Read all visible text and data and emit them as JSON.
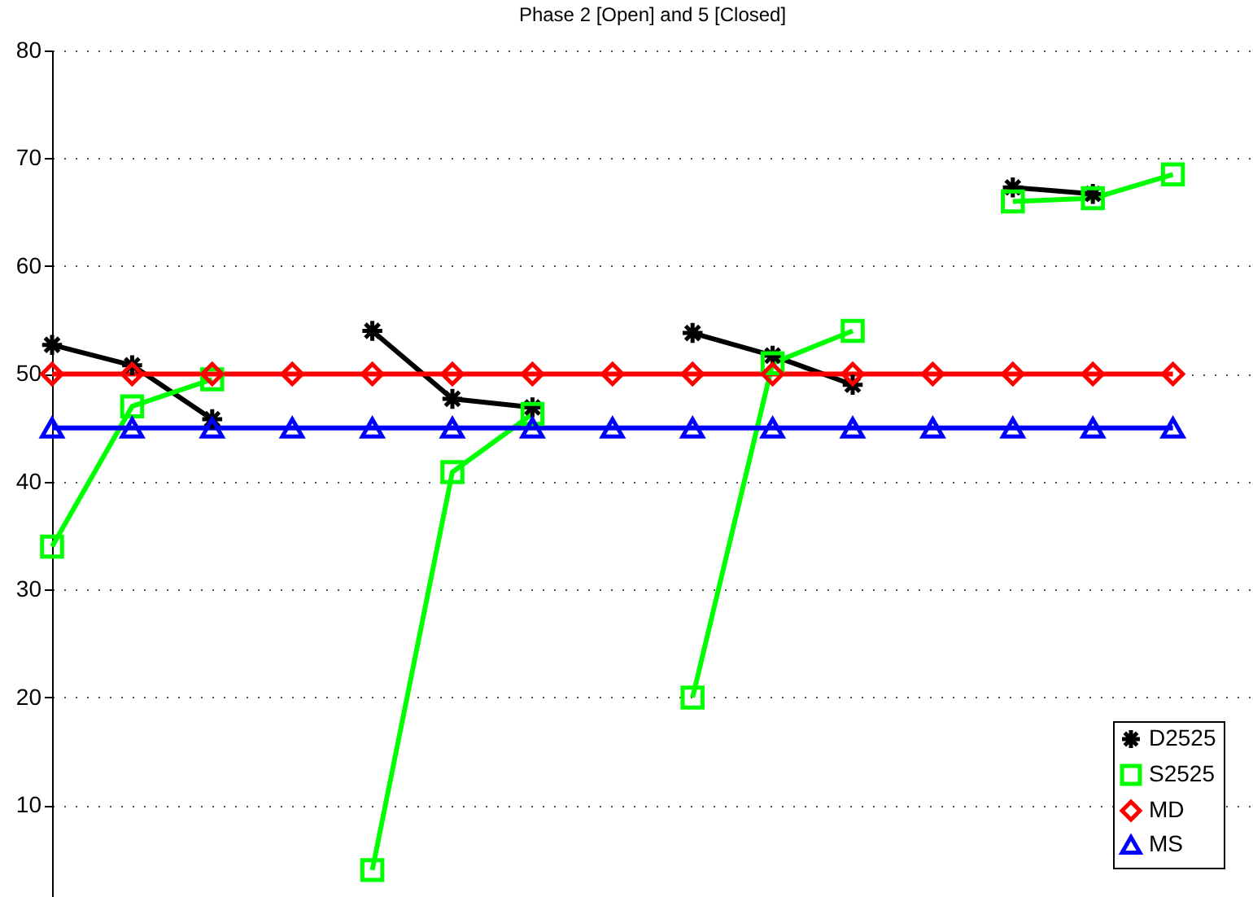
{
  "chart_data": {
    "type": "line",
    "title": "Phase 2 [Open] and 5 [Closed]",
    "categories": [
      null,
      null,
      null,
      null,
      null,
      null,
      null,
      null,
      null,
      null,
      null,
      null,
      null,
      null,
      null
    ],
    "series": [
      {
        "name": "D2525",
        "color": "#000000",
        "marker": "cross",
        "values": [
          52.7,
          50.8,
          45.8,
          null,
          54.0,
          47.7,
          46.9,
          null,
          53.8,
          51.7,
          49.0,
          null,
          67.3,
          66.7,
          null
        ]
      },
      {
        "name": "S2525",
        "color": "#00ff00",
        "marker": "square",
        "values": [
          34.0,
          47.0,
          49.5,
          null,
          4.0,
          40.9,
          46.3,
          null,
          20.0,
          51.0,
          54.0,
          null,
          66.0,
          66.3,
          68.5
        ]
      },
      {
        "name": "MD",
        "color": "#ff0000",
        "marker": "diamond",
        "values": [
          50,
          50,
          50,
          50,
          50,
          50,
          50,
          50,
          50,
          50,
          50,
          50,
          50,
          50,
          50
        ]
      },
      {
        "name": "MS",
        "color": "#0000ff",
        "marker": "triangle",
        "values": [
          45,
          45,
          45,
          45,
          45,
          45,
          45,
          45,
          45,
          45,
          45,
          45,
          45,
          45,
          45
        ]
      }
    ],
    "ylim": [
      1.5,
      80
    ],
    "yticks": [
      10,
      20,
      30,
      40,
      50,
      60,
      70,
      80
    ],
    "grid": "y",
    "legend": "bottom right",
    "tick_labels": "y",
    "line_style": "solid"
  }
}
